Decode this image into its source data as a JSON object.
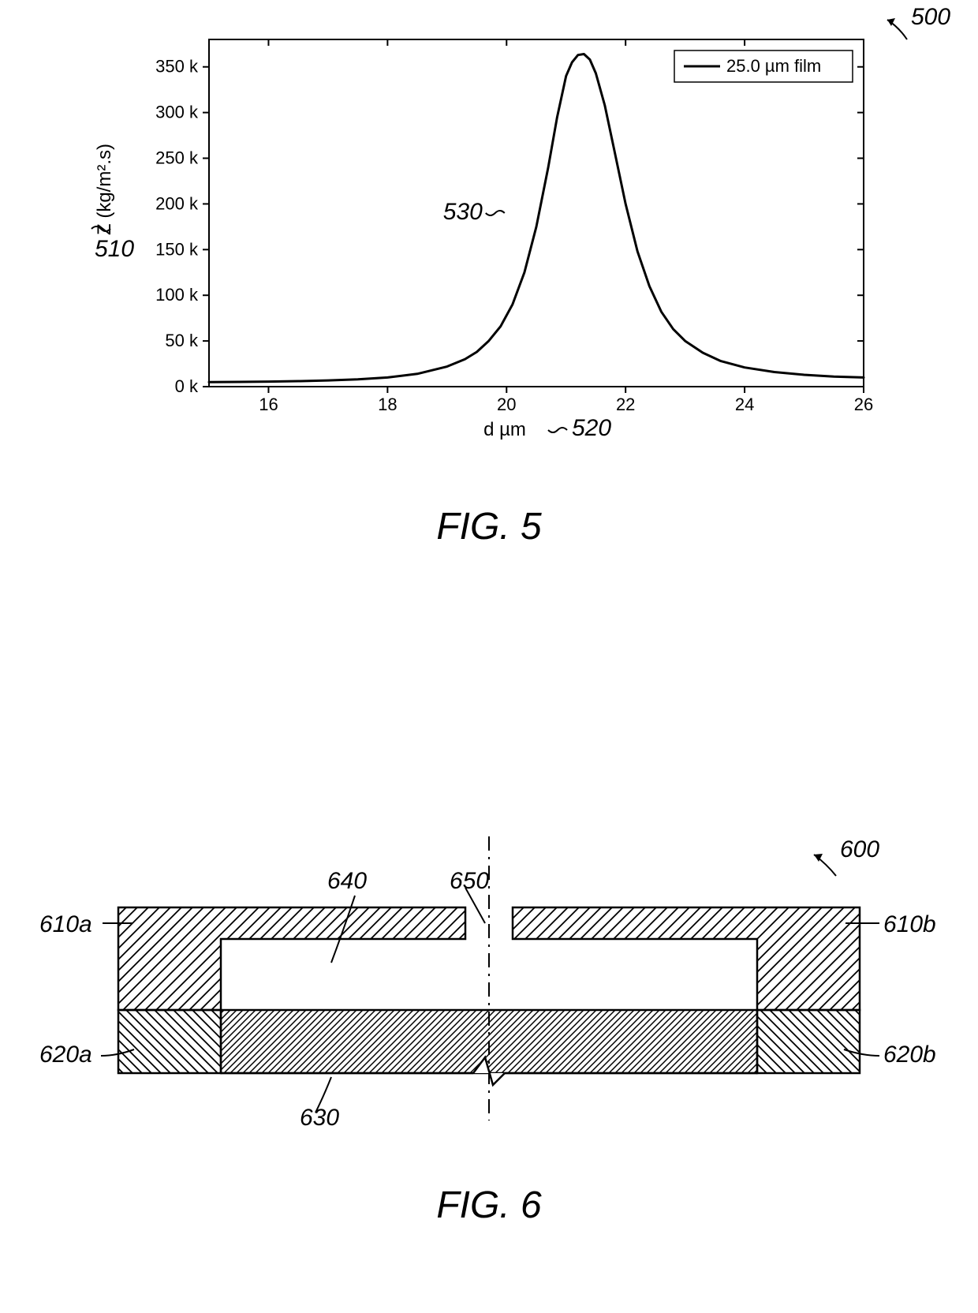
{
  "fig5": {
    "ref_num": "500",
    "type": "line",
    "caption": "FIG. 5",
    "caption_fontsize": 48,
    "callout_fontsize": 30,
    "curve_callout": "530",
    "yaxis": {
      "label": "Z (kg/m².s)",
      "callout": "510",
      "ticks": [
        0,
        50,
        100,
        150,
        200,
        250,
        300,
        350
      ],
      "ylim": [
        0,
        380
      ],
      "tick_suffix": " k",
      "label_fontsize": 24,
      "tick_fontsize": 22
    },
    "xaxis": {
      "label": "d µm",
      "callout": "520",
      "ticks": [
        16,
        18,
        20,
        22,
        24,
        26
      ],
      "xlim": [
        15,
        26
      ],
      "label_fontsize": 24,
      "tick_fontsize": 22
    },
    "legend": {
      "text": "25.0 µm film",
      "fontsize": 22
    },
    "line_color": "#000000",
    "line_width": 3,
    "background_color": "#ffffff",
    "frame_color": "#000000",
    "curve_points": [
      [
        15.0,
        5
      ],
      [
        15.5,
        5.2
      ],
      [
        16.0,
        5.5
      ],
      [
        16.5,
        6
      ],
      [
        17.0,
        6.8
      ],
      [
        17.5,
        8
      ],
      [
        18.0,
        10
      ],
      [
        18.5,
        14
      ],
      [
        19.0,
        22
      ],
      [
        19.3,
        30
      ],
      [
        19.5,
        38
      ],
      [
        19.7,
        50
      ],
      [
        19.9,
        66
      ],
      [
        20.1,
        90
      ],
      [
        20.3,
        125
      ],
      [
        20.5,
        175
      ],
      [
        20.7,
        240
      ],
      [
        20.85,
        295
      ],
      [
        21.0,
        340
      ],
      [
        21.1,
        355
      ],
      [
        21.2,
        363
      ],
      [
        21.3,
        364
      ],
      [
        21.4,
        358
      ],
      [
        21.5,
        343
      ],
      [
        21.65,
        308
      ],
      [
        21.8,
        262
      ],
      [
        22.0,
        200
      ],
      [
        22.2,
        148
      ],
      [
        22.4,
        110
      ],
      [
        22.6,
        82
      ],
      [
        22.8,
        63
      ],
      [
        23.0,
        50
      ],
      [
        23.3,
        37
      ],
      [
        23.6,
        28
      ],
      [
        24.0,
        21
      ],
      [
        24.5,
        16
      ],
      [
        25.0,
        13
      ],
      [
        25.5,
        11
      ],
      [
        26.0,
        10
      ]
    ]
  },
  "fig6": {
    "ref_num": "600",
    "type": "cross-section-diagram",
    "caption": "FIG. 6",
    "stroke_color": "#000000",
    "stroke_width": 2.5,
    "callouts": {
      "left_upper": "610a",
      "right_upper": "610b",
      "left_lower": "620a",
      "right_lower": "620b",
      "membrane": "630",
      "cavity": "640",
      "aperture": "650"
    },
    "hatch": {
      "upper_spacing": 14,
      "upper_angle_deg": 45,
      "lower_outer_spacing": 12,
      "lower_outer_angle_deg": -45,
      "membrane_spacing": 8,
      "membrane_angle_deg": 45
    }
  }
}
